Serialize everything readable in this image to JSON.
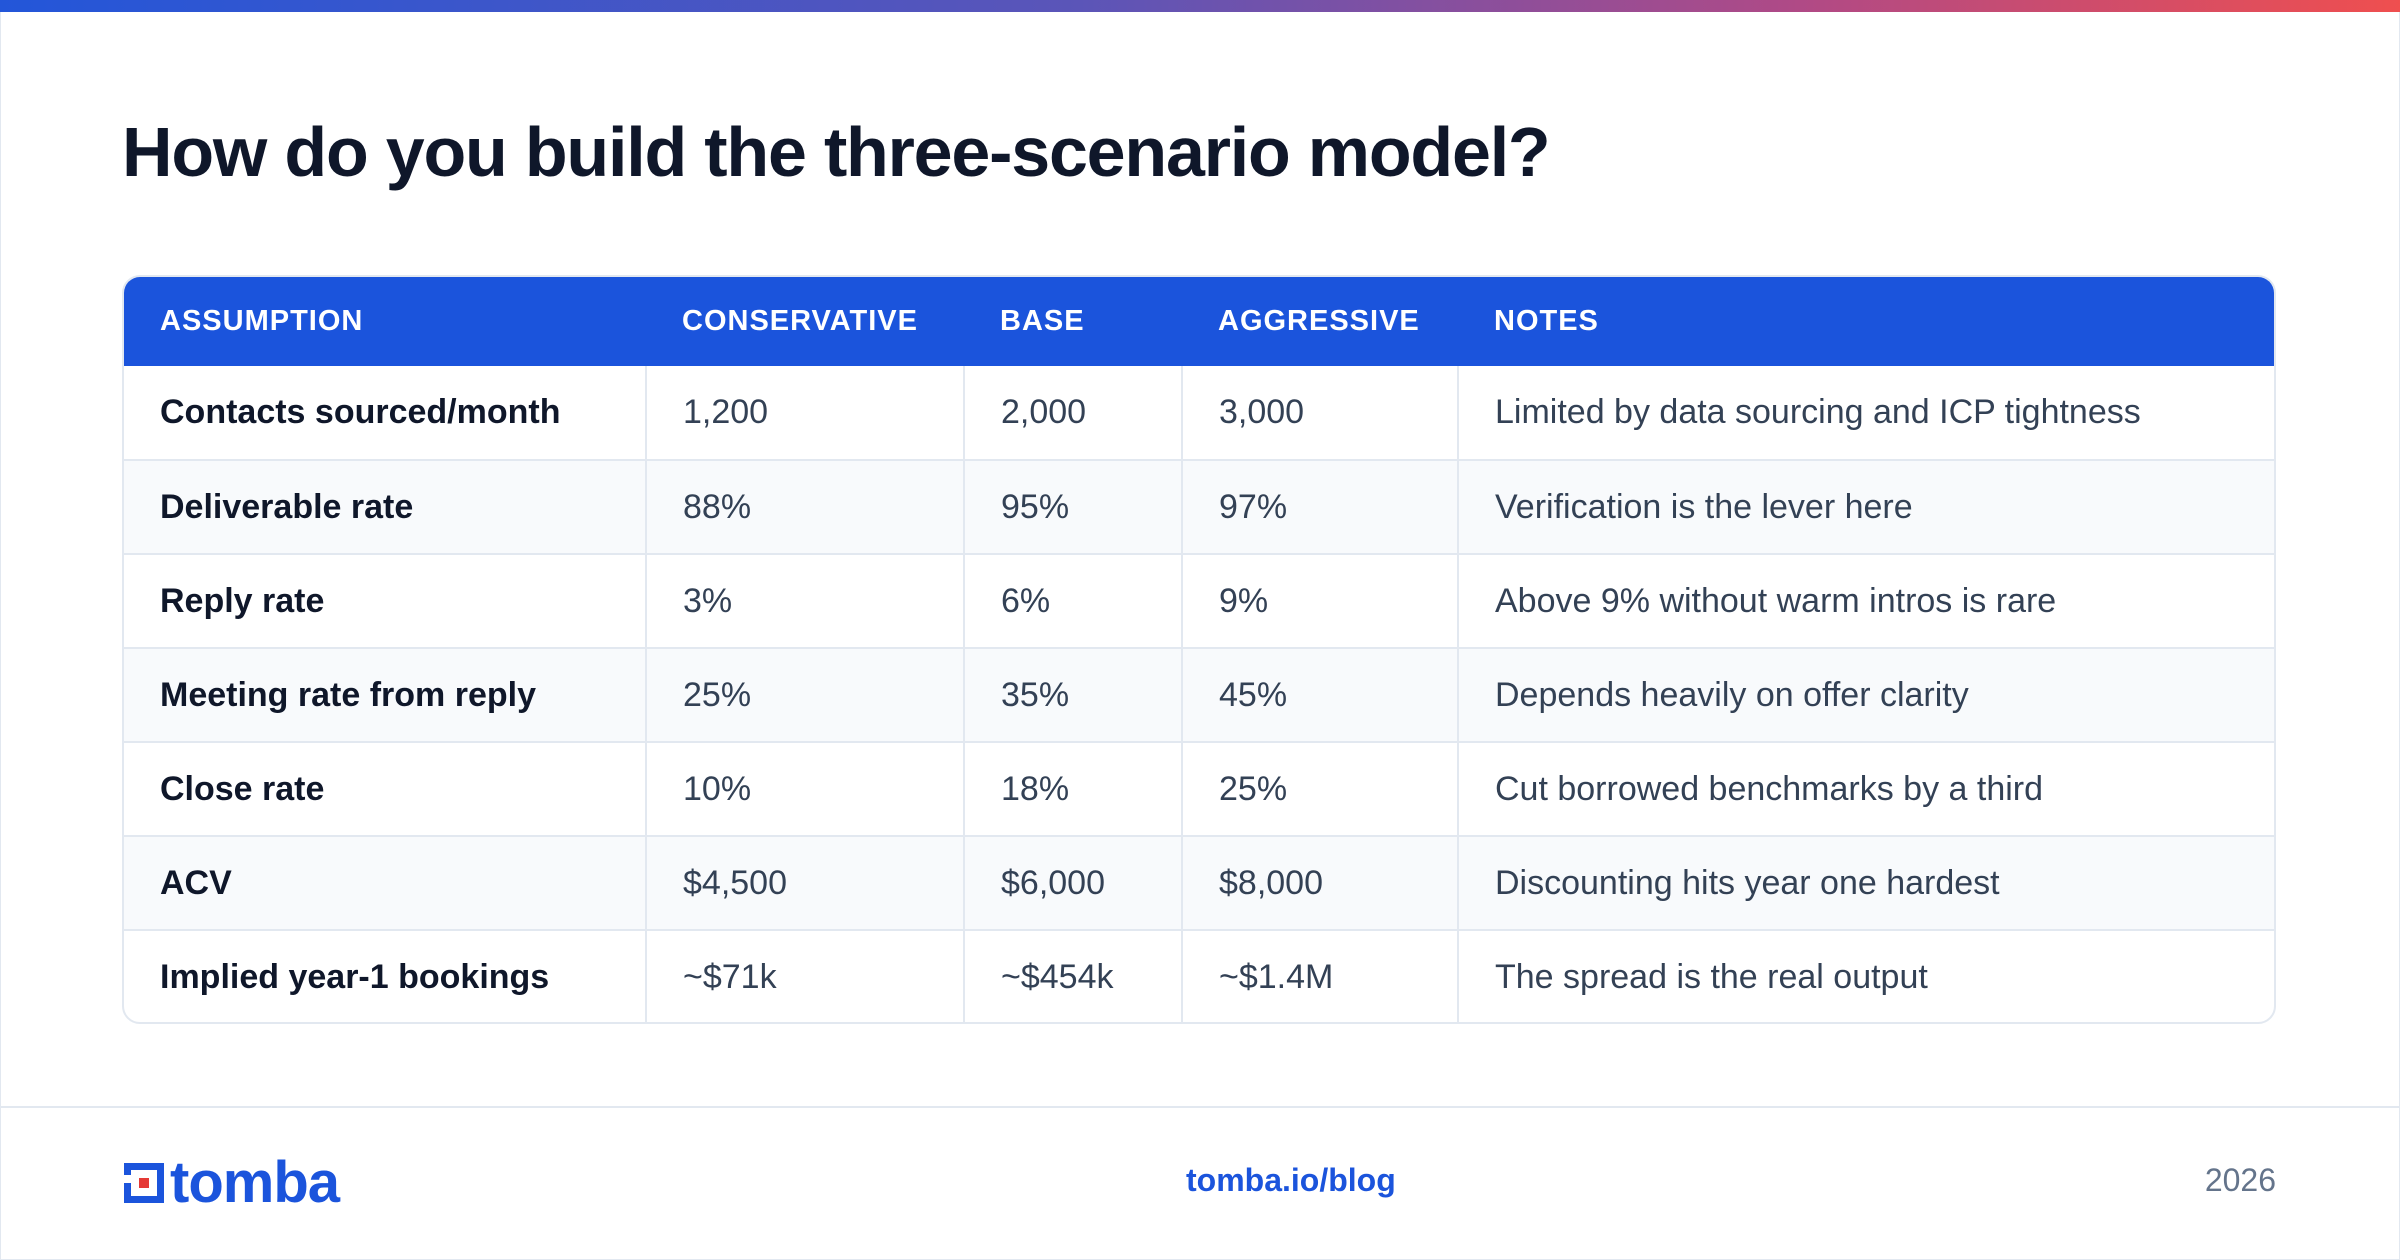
{
  "title": "How do you build the three-scenario model?",
  "table": {
    "columns": [
      "ASSUMPTION",
      "CONSERVATIVE",
      "BASE",
      "AGGRESSIVE",
      "NOTES"
    ],
    "rows": [
      [
        "Contacts sourced/month",
        "1,200",
        "2,000",
        "3,000",
        "Limited by data sourcing and ICP tightness"
      ],
      [
        "Deliverable rate",
        "88%",
        "95%",
        "97%",
        "Verification is the lever here"
      ],
      [
        "Reply rate",
        "3%",
        "6%",
        "9%",
        "Above 9% without warm intros is rare"
      ],
      [
        "Meeting rate from reply",
        "25%",
        "35%",
        "45%",
        "Depends heavily on offer clarity"
      ],
      [
        "Close rate",
        "10%",
        "18%",
        "25%",
        "Cut borrowed benchmarks by a third"
      ],
      [
        "ACV",
        "$4,500",
        "$6,000",
        "$8,000",
        "Discounting hits year one hardest"
      ],
      [
        "Implied year-1 bookings",
        "~$71k",
        "~$454k",
        "~$1.4M",
        "The spread is the real output"
      ]
    ]
  },
  "footer": {
    "logo_text": "tomba",
    "link": "tomba.io/blog",
    "year": "2026"
  },
  "colors": {
    "accent": "#1b54dc",
    "logo_red": "#e53935"
  },
  "icons": {
    "logo_mark": "tomba-logo-icon"
  }
}
